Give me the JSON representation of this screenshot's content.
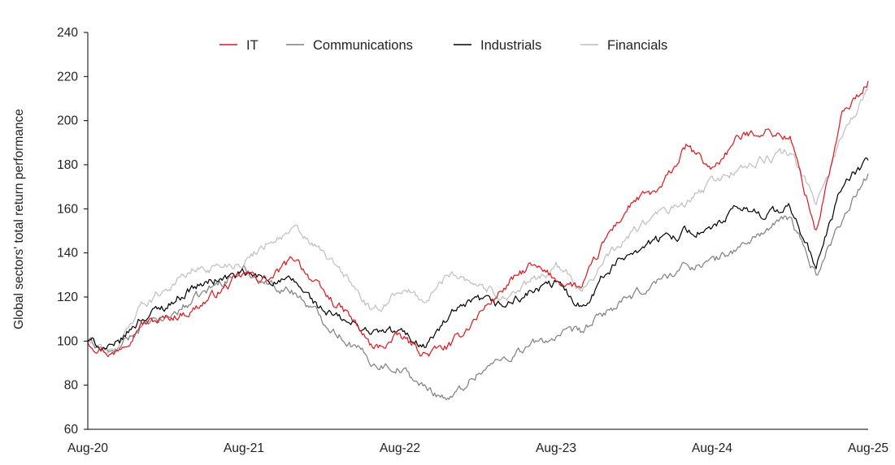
{
  "chart_data": {
    "type": "line",
    "ylabel": "Global sectors' total return performance",
    "xlabel": "",
    "ylim": [
      60,
      240
    ],
    "yticks": [
      60,
      80,
      100,
      120,
      140,
      160,
      180,
      200,
      220,
      240
    ],
    "x_ticks": [
      "Aug-20",
      "Aug-21",
      "Aug-22",
      "Aug-23",
      "Aug-24",
      "Aug-25"
    ],
    "xlim": [
      "Aug-20",
      "Aug-25"
    ],
    "legend_position": "top",
    "grid": false,
    "x": [
      "Aug-20",
      "Oct-20",
      "Dec-20",
      "Feb-21",
      "Apr-21",
      "Jun-21",
      "Aug-21",
      "Oct-21",
      "Dec-21",
      "Feb-22",
      "Apr-22",
      "Jun-22",
      "Aug-22",
      "Oct-22",
      "Dec-22",
      "Feb-23",
      "Apr-23",
      "Jun-23",
      "Aug-23",
      "Oct-23",
      "Dec-23",
      "Feb-24",
      "Apr-24",
      "Jun-24",
      "Aug-24",
      "Oct-24",
      "Dec-24",
      "Feb-25",
      "Apr-25",
      "Jun-25",
      "Aug-25"
    ],
    "series": [
      {
        "name": "IT",
        "color": "#e0161e",
        "values": [
          100,
          94,
          108,
          110,
          114,
          122,
          130,
          128,
          138,
          122,
          112,
          96,
          102,
          94,
          98,
          112,
          124,
          134,
          128,
          124,
          148,
          164,
          168,
          188,
          178,
          192,
          196,
          192,
          150,
          202,
          218
        ]
      },
      {
        "name": "Communications",
        "color": "#7f7f7f",
        "values": [
          100,
          94,
          106,
          110,
          118,
          126,
          132,
          126,
          122,
          110,
          100,
          90,
          88,
          78,
          74,
          86,
          92,
          98,
          102,
          104,
          114,
          120,
          128,
          134,
          136,
          142,
          150,
          156,
          130,
          156,
          176
        ]
      },
      {
        "name": "Industrials",
        "color": "#000000",
        "values": [
          100,
          96,
          110,
          116,
          124,
          128,
          130,
          128,
          126,
          114,
          108,
          104,
          104,
          98,
          112,
          118,
          116,
          122,
          126,
          116,
          132,
          142,
          146,
          150,
          150,
          160,
          158,
          160,
          134,
          170,
          182
        ]
      },
      {
        "name": "Financials",
        "color": "#bfbfbf",
        "values": [
          100,
          94,
          116,
          124,
          132,
          134,
          136,
          146,
          150,
          140,
          128,
          112,
          124,
          118,
          132,
          126,
          120,
          126,
          134,
          124,
          138,
          150,
          158,
          162,
          172,
          178,
          182,
          186,
          162,
          194,
          214
        ]
      }
    ]
  }
}
